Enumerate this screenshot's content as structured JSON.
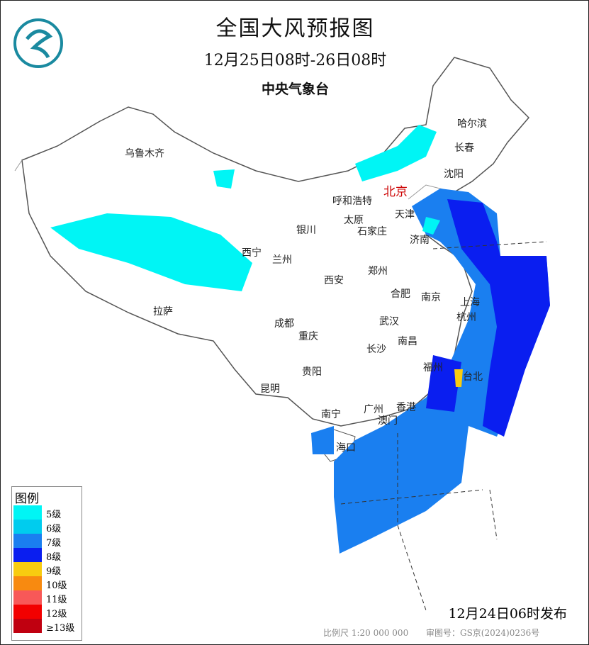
{
  "header": {
    "title": "全国大风预报图",
    "period": "12月25日08时-26日08时",
    "agency": "中央气象台"
  },
  "cities": [
    {
      "name": "乌鲁木齐",
      "capital": false
    },
    {
      "name": "哈尔滨",
      "capital": false
    },
    {
      "name": "长春",
      "capital": false
    },
    {
      "name": "沈阳",
      "capital": false
    },
    {
      "name": "北京",
      "capital": true
    },
    {
      "name": "呼和浩特",
      "capital": false
    },
    {
      "name": "天津",
      "capital": false
    },
    {
      "name": "太原",
      "capital": false
    },
    {
      "name": "石家庄",
      "capital": false
    },
    {
      "name": "银川",
      "capital": false
    },
    {
      "name": "济南",
      "capital": false
    },
    {
      "name": "西宁",
      "capital": false
    },
    {
      "name": "兰州",
      "capital": false
    },
    {
      "name": "郑州",
      "capital": false
    },
    {
      "name": "西安",
      "capital": false
    },
    {
      "name": "合肥",
      "capital": false
    },
    {
      "name": "南京",
      "capital": false
    },
    {
      "name": "上海",
      "capital": false
    },
    {
      "name": "拉萨",
      "capital": false
    },
    {
      "name": "成都",
      "capital": false
    },
    {
      "name": "武汉",
      "capital": false
    },
    {
      "name": "杭州",
      "capital": false
    },
    {
      "name": "重庆",
      "capital": false
    },
    {
      "name": "南昌",
      "capital": false
    },
    {
      "name": "长沙",
      "capital": false
    },
    {
      "name": "福州",
      "capital": false
    },
    {
      "name": "台北",
      "capital": false
    },
    {
      "name": "贵阳",
      "capital": false
    },
    {
      "name": "昆明",
      "capital": false
    },
    {
      "name": "南宁",
      "capital": false
    },
    {
      "name": "广州",
      "capital": false
    },
    {
      "name": "香港",
      "capital": false
    },
    {
      "name": "澳门",
      "capital": false
    },
    {
      "name": "海口",
      "capital": false
    }
  ],
  "legend": {
    "title": "图例",
    "items": [
      {
        "label": "5级",
        "color": "#00f5f5"
      },
      {
        "label": "6级",
        "color": "#00ccee"
      },
      {
        "label": "7级",
        "color": "#1a7ff0"
      },
      {
        "label": "8级",
        "color": "#0a1ef0"
      },
      {
        "label": "9级",
        "color": "#f8cc10"
      },
      {
        "label": "10级",
        "color": "#f88a10"
      },
      {
        "label": "11级",
        "color": "#f85858"
      },
      {
        "label": "12级",
        "color": "#f20000"
      },
      {
        "label": "≥13级",
        "color": "#c00010"
      }
    ]
  },
  "footer": {
    "issued": "12月24日06时发布",
    "scale": "比例尺 1:20 000 000",
    "review": "审图号：GS京(2024)0236号"
  }
}
